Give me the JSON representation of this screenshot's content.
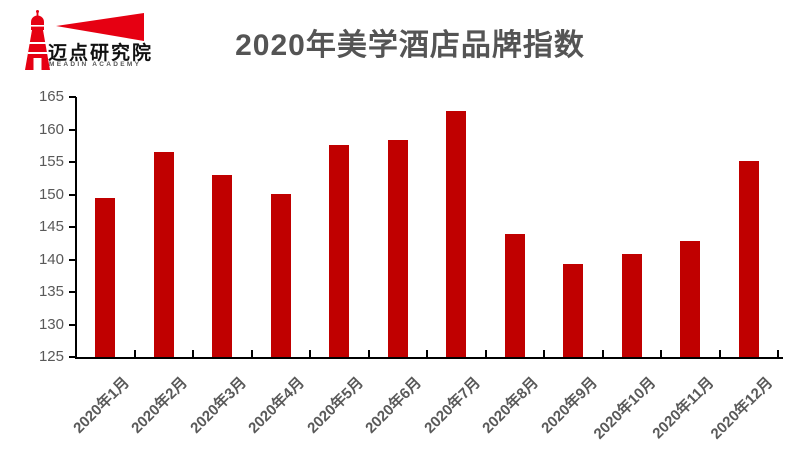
{
  "logo": {
    "brand_name": "迈点研究院",
    "brand_subtext": "MEADIN ACADEMY",
    "brand_color": "#e60012"
  },
  "header": {
    "title": "2020年美学酒店品牌指数"
  },
  "chart_data": {
    "type": "bar",
    "title": "2020年美学酒店品牌指数",
    "categories": [
      "2020年1月",
      "2020年2月",
      "2020年3月",
      "2020年4月",
      "2020年5月",
      "2020年6月",
      "2020年7月",
      "2020年8月",
      "2020年9月",
      "2020年10月",
      "2020年11月",
      "2020年12月"
    ],
    "values": [
      149.5,
      156.5,
      153.0,
      150.1,
      157.6,
      158.4,
      162.9,
      143.9,
      139.3,
      140.8,
      142.8,
      155.2
    ],
    "xlabel": "",
    "ylabel": "",
    "ylim": [
      125,
      165
    ],
    "yticks": [
      125,
      130,
      135,
      140,
      145,
      150,
      155,
      160,
      165
    ],
    "grid": false,
    "legend": false,
    "bar_color": "#c00000",
    "axis_color": "#000000",
    "tick_label_color": "#595959"
  }
}
